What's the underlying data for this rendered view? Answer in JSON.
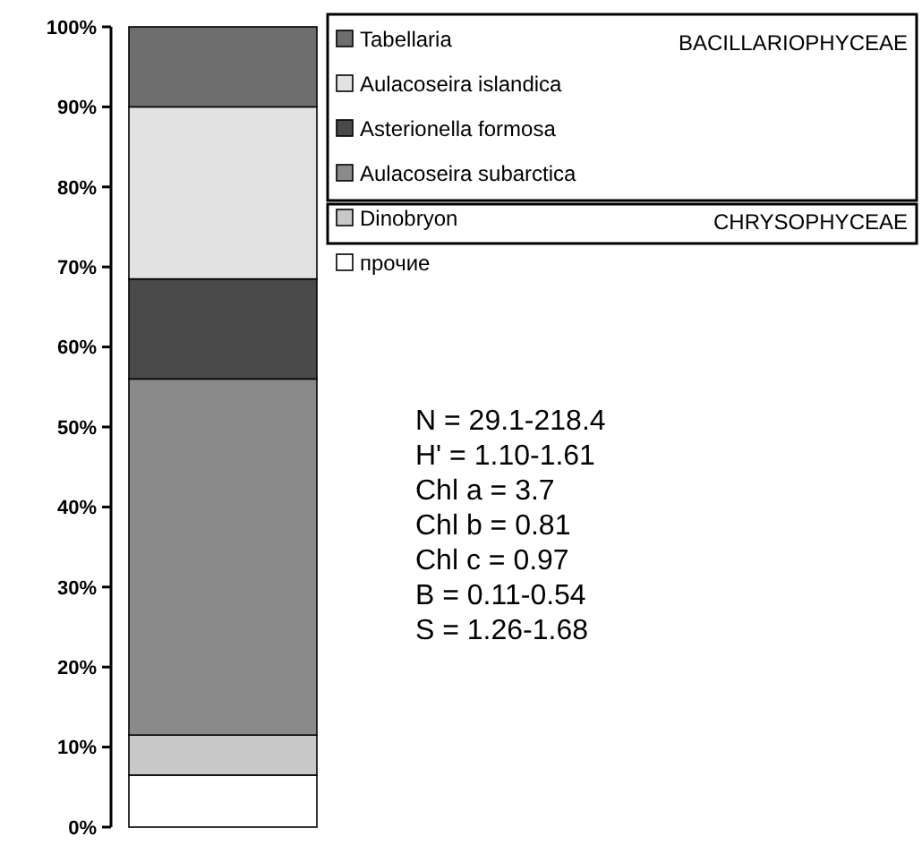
{
  "chart_data": {
    "type": "bar",
    "stacked": true,
    "categories": [
      null
    ],
    "series": [
      {
        "name": "прочие",
        "color": "#ffffff",
        "values": [
          6.5
        ]
      },
      {
        "name": "Dinobryon",
        "color": "#c8c8c8",
        "values": [
          5
        ]
      },
      {
        "name": "Aulacoseira subarctica",
        "color": "#8a8a8a",
        "values": [
          44.5
        ]
      },
      {
        "name": "Asterionella formosa",
        "color": "#4a4a4a",
        "values": [
          12.5
        ]
      },
      {
        "name": "Aulacoseira islandica",
        "color": "#e2e2e2",
        "values": [
          21.5
        ]
      },
      {
        "name": "Tabellaria",
        "color": "#6e6e6e",
        "values": [
          10
        ]
      }
    ],
    "ylim": [
      0,
      100
    ],
    "yticks": [
      {
        "value": 0,
        "label": "0%"
      },
      {
        "value": 10,
        "label": "10%"
      },
      {
        "value": 20,
        "label": "20%"
      },
      {
        "value": 30,
        "label": "30%"
      },
      {
        "value": 40,
        "label": "40%"
      },
      {
        "value": 50,
        "label": "50%"
      },
      {
        "value": 60,
        "label": "60%"
      },
      {
        "value": 70,
        "label": "70%"
      },
      {
        "value": 80,
        "label": "80%"
      },
      {
        "value": 90,
        "label": "90%"
      },
      {
        "value": 100,
        "label": "100%"
      }
    ],
    "legend": "right",
    "annotations": [
      "BACILLARIOPHYCEAE",
      "CHRYSOPHYCEAE",
      "N = 29.1-218.4",
      "H' = 1.10-1.61",
      "Chl a = 3.7",
      "Chl b = 0.81",
      "Chl c = 0.97",
      "B = 0.11-0.54",
      "S = 1.26-1.68"
    ]
  }
}
